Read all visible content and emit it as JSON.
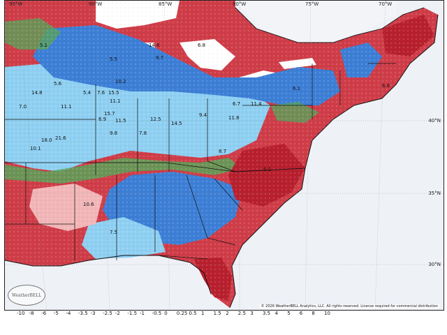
{
  "map": {
    "lon_labels": [
      "95°W",
      "90°W",
      "85°W",
      "80°W",
      "75°W",
      "70°W"
    ],
    "lat_labels": [
      "40°N",
      "35°N",
      "30°N"
    ],
    "copyright": "© 2026 WeatherBELL Analytics, LLC. All rights reserved. License required for commercial distribution",
    "logo_text": "WeatherBELL",
    "colorbar_ticks": [
      "-10",
      "-8",
      "-6",
      "-5",
      "-4",
      "-3.5",
      "-3",
      "-2.5",
      "-2",
      "-1.5",
      "-1",
      "-0.5",
      "0",
      "0.25",
      "0.5",
      "1",
      "1.5",
      "2",
      "2.5",
      "3",
      "3.5",
      "4",
      "5",
      "6",
      "8",
      "10"
    ],
    "values": [
      "5.1",
      "5.6",
      "14.8",
      "7.0",
      "11.1",
      "18.0",
      "21.6",
      "10.1",
      "5.4",
      "7.6",
      "15.5",
      "11.1",
      "10.2",
      "15.7",
      "6.9",
      "11.5",
      "12.5",
      "14.5",
      "7.8",
      "9.8",
      "9.4",
      "6.7",
      "11.4",
      "11.8",
      "6.1",
      "8.7",
      "6.8",
      "14.6",
      "9.7",
      "5.5",
      "6.6",
      "7.5",
      "10.6",
      "5.1"
    ],
    "colors": {
      "background": "#eef1f6",
      "deep_red": "#b8202e",
      "red": "#d94b55",
      "pink": "#f2b6b8",
      "green": "#5aa35a",
      "light_blue": "#8fd0f2",
      "blue": "#3d7fd6",
      "deep_blue": "#2a52b8",
      "water": "#ffffff",
      "border": "#111111"
    }
  }
}
